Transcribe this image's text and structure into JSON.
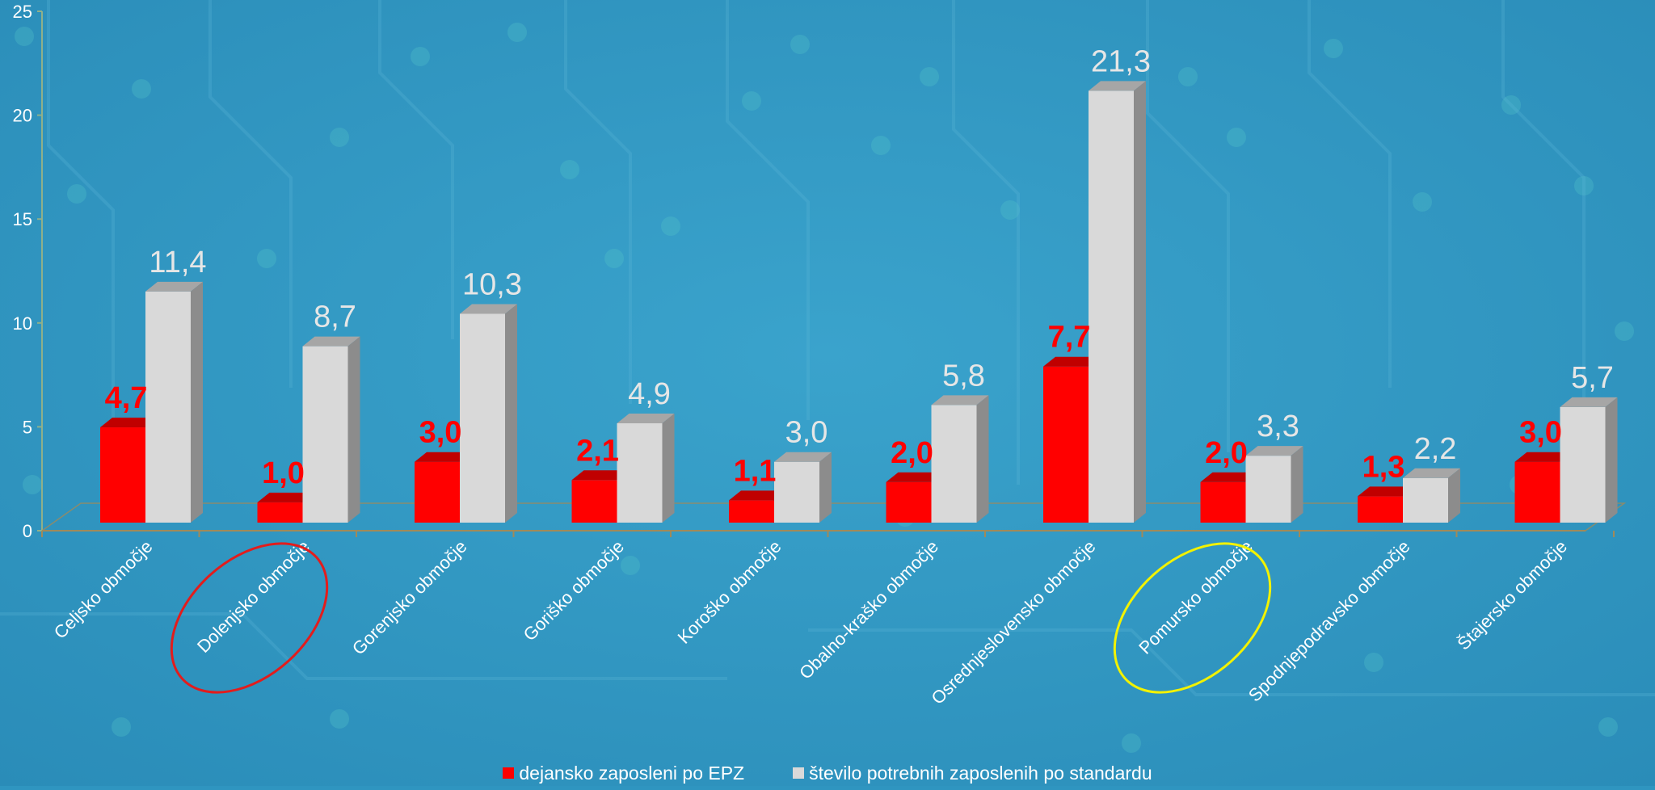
{
  "chart_data": {
    "type": "bar",
    "categories": [
      "Celjsko območje",
      "Dolenjsko območje",
      "Gorenjsko območje",
      "Goriško območje",
      "Koroško območje",
      "Obalno-kraško območje",
      "Osrednjeslovensko območje",
      "Pomursko območje",
      "Spodnjepodravsko območje",
      "Štajersko območje"
    ],
    "series": [
      {
        "name": "dejansko zaposleni po EPZ",
        "color": "#ff0000",
        "values": [
          4.7,
          1.0,
          3.0,
          2.1,
          1.1,
          2.0,
          7.7,
          2.0,
          1.3,
          3.0
        ],
        "labels": [
          "4,7",
          "1,0",
          "3,0",
          "2,1",
          "1,1",
          "2,0",
          "7,7",
          "2,0",
          "1,3",
          "3,0"
        ]
      },
      {
        "name": "število potrebnih zaposlenih po standardu",
        "color": "#d9d9d9",
        "values": [
          11.4,
          8.7,
          10.3,
          4.9,
          3.0,
          5.8,
          21.3,
          3.3,
          2.2,
          5.7
        ],
        "labels": [
          "11,4",
          "8,7",
          "10,3",
          "4,9",
          "3,0",
          "5,8",
          "21,3",
          "3,3",
          "2,2",
          "5,7"
        ]
      }
    ],
    "ylim": [
      0,
      25
    ],
    "yticks": [
      0,
      5,
      10,
      15,
      20,
      25
    ],
    "grid": false,
    "legend_position": "bottom",
    "highlighted_categories": [
      {
        "category": "Dolenjsko območje",
        "color": "#e31c1c"
      },
      {
        "category": "Pomursko območje",
        "color": "#f2f200"
      }
    ]
  }
}
